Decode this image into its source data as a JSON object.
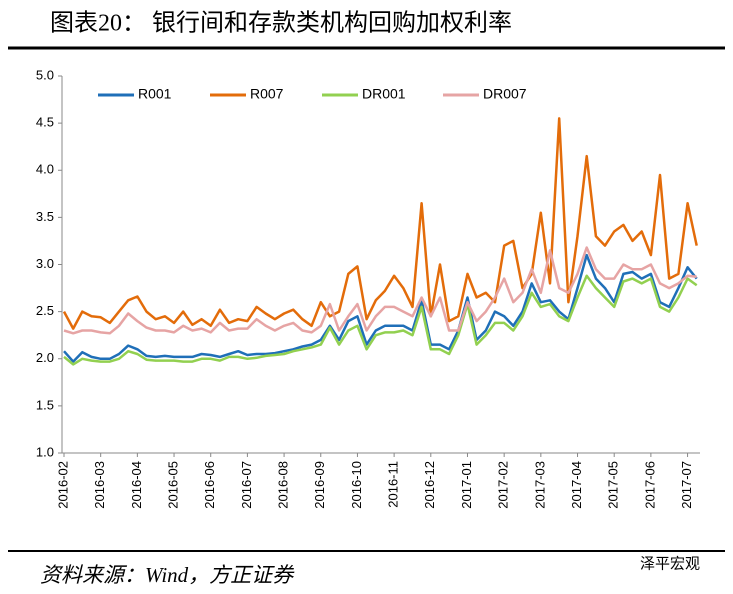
{
  "chart_data": {
    "type": "line",
    "title": "图表20：  银行间和存款类机构回购加权利率",
    "source": "资料来源：Wind，方正证券",
    "watermark": "泽平宏观",
    "categories": [
      "2016-02",
      null,
      null,
      null,
      "2016-03",
      null,
      null,
      null,
      "2016-04",
      null,
      null,
      null,
      "2016-05",
      null,
      null,
      null,
      "2016-06",
      null,
      null,
      null,
      "2016-07",
      null,
      null,
      null,
      "2016-08",
      null,
      null,
      null,
      "2016-09",
      null,
      null,
      null,
      "2016-10",
      null,
      null,
      null,
      "2016-11",
      null,
      null,
      null,
      "2016-12",
      null,
      null,
      null,
      "2017-01",
      null,
      null,
      null,
      "2017-02",
      null,
      null,
      null,
      "2017-03",
      null,
      null,
      null,
      "2017-04",
      null,
      null,
      null,
      "2017-05",
      null,
      null,
      null,
      "2017-06",
      null,
      null,
      null,
      "2017-07",
      null
    ],
    "series": [
      {
        "name": "R001",
        "color": "#1f6fb8",
        "values": [
          2.08,
          1.97,
          2.07,
          2.02,
          2.0,
          2.0,
          2.05,
          2.14,
          2.1,
          2.03,
          2.02,
          2.03,
          2.02,
          2.02,
          2.02,
          2.05,
          2.04,
          2.02,
          2.05,
          2.08,
          2.04,
          2.05,
          2.05,
          2.06,
          2.08,
          2.1,
          2.13,
          2.15,
          2.2,
          2.35,
          2.2,
          2.4,
          2.45,
          2.15,
          2.3,
          2.35,
          2.35,
          2.35,
          2.3,
          2.62,
          2.15,
          2.15,
          2.1,
          2.3,
          2.65,
          2.2,
          2.3,
          2.5,
          2.45,
          2.35,
          2.5,
          2.8,
          2.6,
          2.62,
          2.5,
          2.42,
          2.75,
          3.1,
          2.85,
          2.75,
          2.6,
          2.9,
          2.92,
          2.85,
          2.9,
          2.6,
          2.55,
          2.75,
          2.97,
          2.85
        ]
      },
      {
        "name": "R007",
        "color": "#e36c0a",
        "values": [
          2.5,
          2.32,
          2.5,
          2.45,
          2.44,
          2.38,
          2.5,
          2.62,
          2.66,
          2.5,
          2.42,
          2.45,
          2.38,
          2.5,
          2.36,
          2.42,
          2.35,
          2.52,
          2.38,
          2.42,
          2.4,
          2.55,
          2.48,
          2.42,
          2.48,
          2.52,
          2.42,
          2.35,
          2.6,
          2.45,
          2.5,
          2.9,
          2.98,
          2.42,
          2.62,
          2.72,
          2.88,
          2.75,
          2.55,
          3.65,
          2.45,
          3.0,
          2.4,
          2.45,
          2.9,
          2.65,
          2.7,
          2.6,
          3.2,
          3.25,
          2.75,
          2.9,
          3.55,
          2.8,
          4.55,
          2.6,
          3.3,
          4.15,
          3.3,
          3.2,
          3.35,
          3.42,
          3.25,
          3.35,
          3.1,
          3.95,
          2.85,
          2.9,
          3.65,
          3.2
        ]
      },
      {
        "name": "DR001",
        "color": "#92d050",
        "values": [
          2.02,
          1.94,
          2.0,
          1.98,
          1.97,
          1.97,
          2.0,
          2.08,
          2.05,
          1.99,
          1.98,
          1.98,
          1.98,
          1.97,
          1.97,
          2.0,
          2.0,
          1.98,
          2.02,
          2.02,
          2.0,
          2.01,
          2.03,
          2.04,
          2.05,
          2.08,
          2.1,
          2.12,
          2.15,
          2.33,
          2.15,
          2.3,
          2.35,
          2.1,
          2.25,
          2.28,
          2.28,
          2.3,
          2.25,
          2.55,
          2.1,
          2.1,
          2.05,
          2.25,
          2.58,
          2.15,
          2.25,
          2.38,
          2.38,
          2.3,
          2.45,
          2.7,
          2.55,
          2.58,
          2.45,
          2.4,
          2.65,
          2.88,
          2.75,
          2.65,
          2.55,
          2.82,
          2.85,
          2.8,
          2.85,
          2.55,
          2.5,
          2.65,
          2.85,
          2.78
        ]
      },
      {
        "name": "DR007",
        "color": "#e6a4a4",
        "values": [
          2.3,
          2.27,
          2.3,
          2.3,
          2.28,
          2.27,
          2.35,
          2.48,
          2.4,
          2.33,
          2.3,
          2.3,
          2.28,
          2.35,
          2.3,
          2.32,
          2.28,
          2.38,
          2.3,
          2.32,
          2.32,
          2.42,
          2.35,
          2.3,
          2.35,
          2.38,
          2.3,
          2.28,
          2.35,
          2.58,
          2.3,
          2.45,
          2.58,
          2.3,
          2.45,
          2.55,
          2.55,
          2.5,
          2.45,
          2.65,
          2.45,
          2.65,
          2.3,
          2.3,
          2.6,
          2.4,
          2.5,
          2.65,
          2.85,
          2.6,
          2.7,
          2.95,
          2.7,
          3.15,
          2.75,
          2.7,
          2.9,
          3.18,
          2.95,
          2.85,
          2.85,
          3.0,
          2.95,
          2.95,
          3.0,
          2.8,
          2.75,
          2.8,
          2.88,
          2.87
        ]
      }
    ],
    "ylim": [
      1,
      5
    ],
    "yticks": [
      {
        "value": 1,
        "label": "1.0"
      },
      {
        "value": 1.5,
        "label": "1.5"
      },
      {
        "value": 2,
        "label": "2.0"
      },
      {
        "value": 2.5,
        "label": "2.5"
      },
      {
        "value": 3,
        "label": "3.0"
      },
      {
        "value": 3.5,
        "label": "3.5"
      },
      {
        "value": 4,
        "label": "4.0"
      },
      {
        "value": 4.5,
        "label": "4.5"
      },
      {
        "value": 5,
        "label": "5.0"
      }
    ],
    "grid": false,
    "legend": "top"
  }
}
